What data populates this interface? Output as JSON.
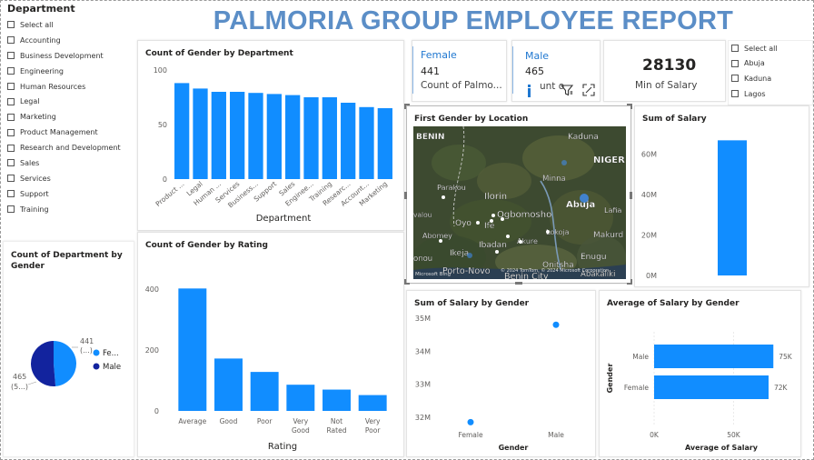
{
  "report_title": "PALMORIA GROUP EMPLOYEE REPORT",
  "department_slicer": {
    "header": "Department",
    "items": [
      "Select all",
      "Accounting",
      "Business Development",
      "Engineering",
      "Human Resources",
      "Legal",
      "Marketing",
      "Product Management",
      "Research and Development",
      "Sales",
      "Services",
      "Support",
      "Training"
    ]
  },
  "location_slicer": {
    "items": [
      "Select all",
      "Abuja",
      "Kaduna",
      "Lagos"
    ]
  },
  "kpi_female": {
    "label": "Female",
    "value": "441",
    "sub": "Count of Palmo..."
  },
  "kpi_male": {
    "label": "Male",
    "value": "465",
    "sub": "unt o"
  },
  "kpi_min_salary": {
    "value": "28130",
    "label": "Min of Salary"
  },
  "visual_toolbar": {
    "icons": [
      "filter-icon",
      "focus-mode-icon",
      "more-options-icon"
    ]
  },
  "map_visual": {
    "title": "First Gender by Location",
    "labels": [
      "BENIN",
      "Kaduna",
      "NIGER",
      "Minna",
      "Parakou",
      "Ilorin",
      "Abuja",
      "Lafia",
      "Oyo",
      "Ife",
      "Ogbomosho",
      "valou",
      "Abomey",
      "Ibadan",
      "Akure",
      "Lokoja",
      "Makurd",
      "Ikeja",
      "Porto-Novo",
      "Onitsha",
      "Enugu",
      "onou",
      "Benin City",
      "Abakaliki"
    ],
    "attribution": "© 2024 TomTom, © 2024 Microsoft Corporation",
    "brand": "Microsoft Bing"
  },
  "chart_data": [
    {
      "type": "bar",
      "title": "Count of Gender by Department",
      "xlabel": "Department",
      "ylabel": "",
      "categories": [
        "Product ...",
        "Legal",
        "Human ...",
        "Services",
        "Business...",
        "Support",
        "Sales",
        "Enginee...",
        "Training",
        "Researc...",
        "Account...",
        "Marketing"
      ],
      "values": [
        88,
        83,
        80,
        80,
        79,
        78,
        77,
        75,
        75,
        70,
        66,
        65
      ],
      "ylim": [
        0,
        100
      ],
      "yticks": [
        "0",
        "50",
        "100"
      ],
      "color": "#118dff"
    },
    {
      "type": "bar",
      "title": "Count of Gender by Rating",
      "xlabel": "Rating",
      "ylabel": "",
      "categories": [
        "Average",
        "Good",
        "Poor",
        "Very Good",
        "Not Rated",
        "Very Poor"
      ],
      "values": [
        402,
        172,
        128,
        86,
        70,
        52
      ],
      "ylim": [
        0,
        400
      ],
      "yticks": [
        "0",
        "200",
        "400"
      ],
      "color": "#118dff"
    },
    {
      "type": "pie",
      "title": "Count of Department by Gender",
      "slices": [
        {
          "name": "Fe...",
          "value": 441,
          "label": "441",
          "label_sub": "(...)",
          "color": "#118dff"
        },
        {
          "name": "Male",
          "value": 465,
          "label": "465",
          "label_sub": "(5...)",
          "color": "#12239e"
        }
      ],
      "legend": "right"
    },
    {
      "type": "bar",
      "title": "Sum of Salary",
      "xlabel": "",
      "ylabel": "",
      "categories": [
        ""
      ],
      "values": [
        66700000
      ],
      "ylim": [
        0,
        70000000
      ],
      "yticks": [
        "0M",
        "20M",
        "40M",
        "60M"
      ],
      "color": "#118dff"
    },
    {
      "type": "scatter",
      "title": "Sum of Salary by Gender",
      "xlabel": "Gender",
      "ylabel": "",
      "categories": [
        "Female",
        "Male"
      ],
      "values": [
        31850000,
        34800000
      ],
      "ylim": [
        31750000,
        35000000
      ],
      "yticks": [
        "32M",
        "33M",
        "34M",
        "35M"
      ],
      "color": "#118dff"
    },
    {
      "type": "bar",
      "orientation": "horizontal",
      "title": "Average of Salary by Gender",
      "xlabel": "Average of Salary",
      "ylabel": "Gender",
      "categories": [
        "Male",
        "Female"
      ],
      "values": [
        75000,
        72000
      ],
      "data_labels": [
        "75K",
        "72K"
      ],
      "xlim": [
        0,
        80000
      ],
      "xticks": [
        "0K",
        "50K"
      ],
      "color": "#118dff"
    }
  ]
}
